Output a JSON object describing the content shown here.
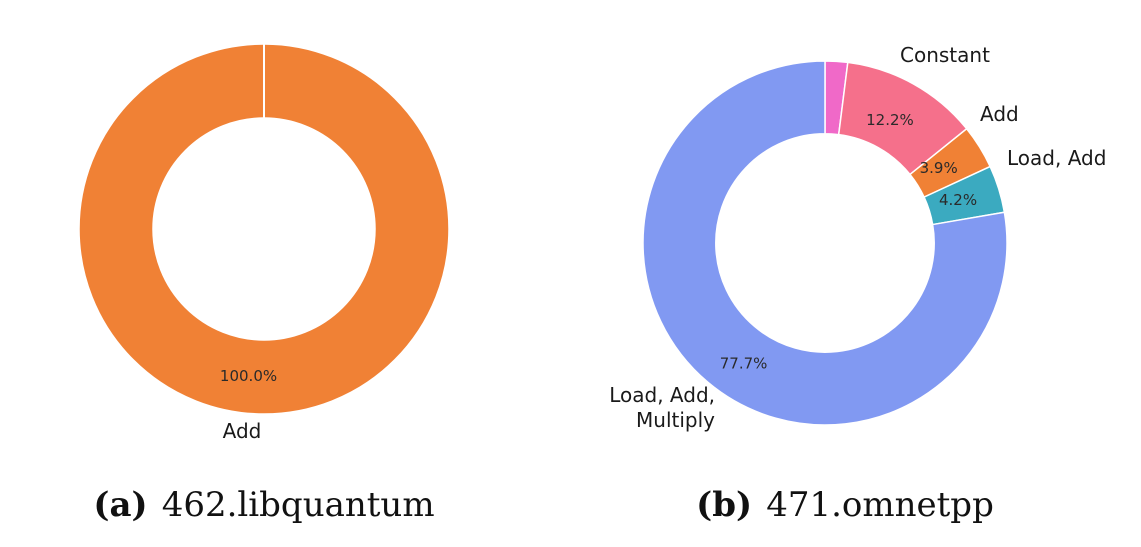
{
  "chart_data": [
    {
      "type": "pie",
      "hole": 0.6,
      "caption_letter": "(a)",
      "caption": "462.libquantum",
      "slices": [
        {
          "label": "Add",
          "value": 100.0,
          "text": "100.0%",
          "color": "#F08135"
        }
      ]
    },
    {
      "type": "pie",
      "hole": 0.6,
      "caption_letter": "(b)",
      "caption": "471.omnetpp",
      "slices": [
        {
          "label": "",
          "value": 2.0,
          "text": "",
          "color": "#F069C8"
        },
        {
          "label": "Constant",
          "value": 12.2,
          "text": "12.2%",
          "color": "#F5708B"
        },
        {
          "label": "Add",
          "value": 3.9,
          "text": "3.9%",
          "color": "#F08135"
        },
        {
          "label": "Load, Add",
          "value": 4.2,
          "text": "4.2%",
          "color": "#3BAAC0"
        },
        {
          "label": "Load, Add,\nMultiply",
          "value": 77.7,
          "text": "77.7%",
          "color": "#8199F2"
        }
      ]
    }
  ]
}
